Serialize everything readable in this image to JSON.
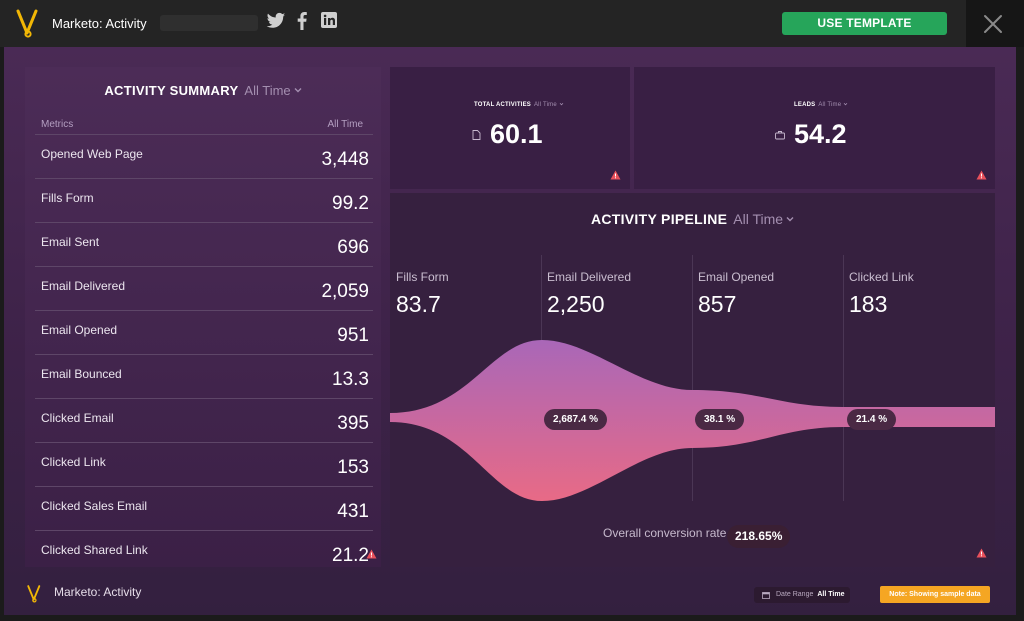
{
  "header": {
    "app_title": "Marketo: Activity",
    "use_template_label": "USE TEMPLATE"
  },
  "summary": {
    "title": "ACTIVITY SUMMARY",
    "range": "All Time",
    "col_metric": "Metrics",
    "col_time": "All Time",
    "rows": [
      {
        "label": "Opened Web Page",
        "value": "3,448"
      },
      {
        "label": "Fills Form",
        "value": "99.2"
      },
      {
        "label": "Email Sent",
        "value": "696"
      },
      {
        "label": "Email Delivered",
        "value": "2,059"
      },
      {
        "label": "Email Opened",
        "value": "951"
      },
      {
        "label": "Email Bounced",
        "value": "13.3"
      },
      {
        "label": "Clicked Email",
        "value": "395"
      },
      {
        "label": "Clicked Link",
        "value": "153"
      },
      {
        "label": "Clicked Sales Email",
        "value": "431"
      },
      {
        "label": "Clicked Shared Link",
        "value": "21.2"
      }
    ]
  },
  "kpis": {
    "total": {
      "label": "TOTAL ACTIVITIES",
      "range": "All Time",
      "value": "60.1"
    },
    "leads": {
      "label": "LEADS",
      "range": "All Time",
      "value": "54.2"
    }
  },
  "pipeline": {
    "title": "ACTIVITY PIPELINE",
    "range": "All Time",
    "stages": [
      {
        "label": "Fills Form",
        "value": "83.7"
      },
      {
        "label": "Email Delivered",
        "value": "2,250"
      },
      {
        "label": "Email Opened",
        "value": "857"
      },
      {
        "label": "Clicked Link",
        "value": "183"
      }
    ],
    "conversions": [
      "2,687.4 %",
      "38.1 %",
      "21.4 %"
    ],
    "overall_label": "Overall conversion rate",
    "overall_value": "218.65%"
  },
  "footer": {
    "title": "Marketo: Activity",
    "date_range_label": "Date Range",
    "date_range_value": "All Time",
    "note": "Note: Showing sample data"
  },
  "colors": {
    "accent_green": "#26a55a",
    "note_orange": "#f5a623",
    "funnel_top": "#a967b8",
    "funnel_bottom": "#e86a86",
    "warning": "#e8505b"
  }
}
